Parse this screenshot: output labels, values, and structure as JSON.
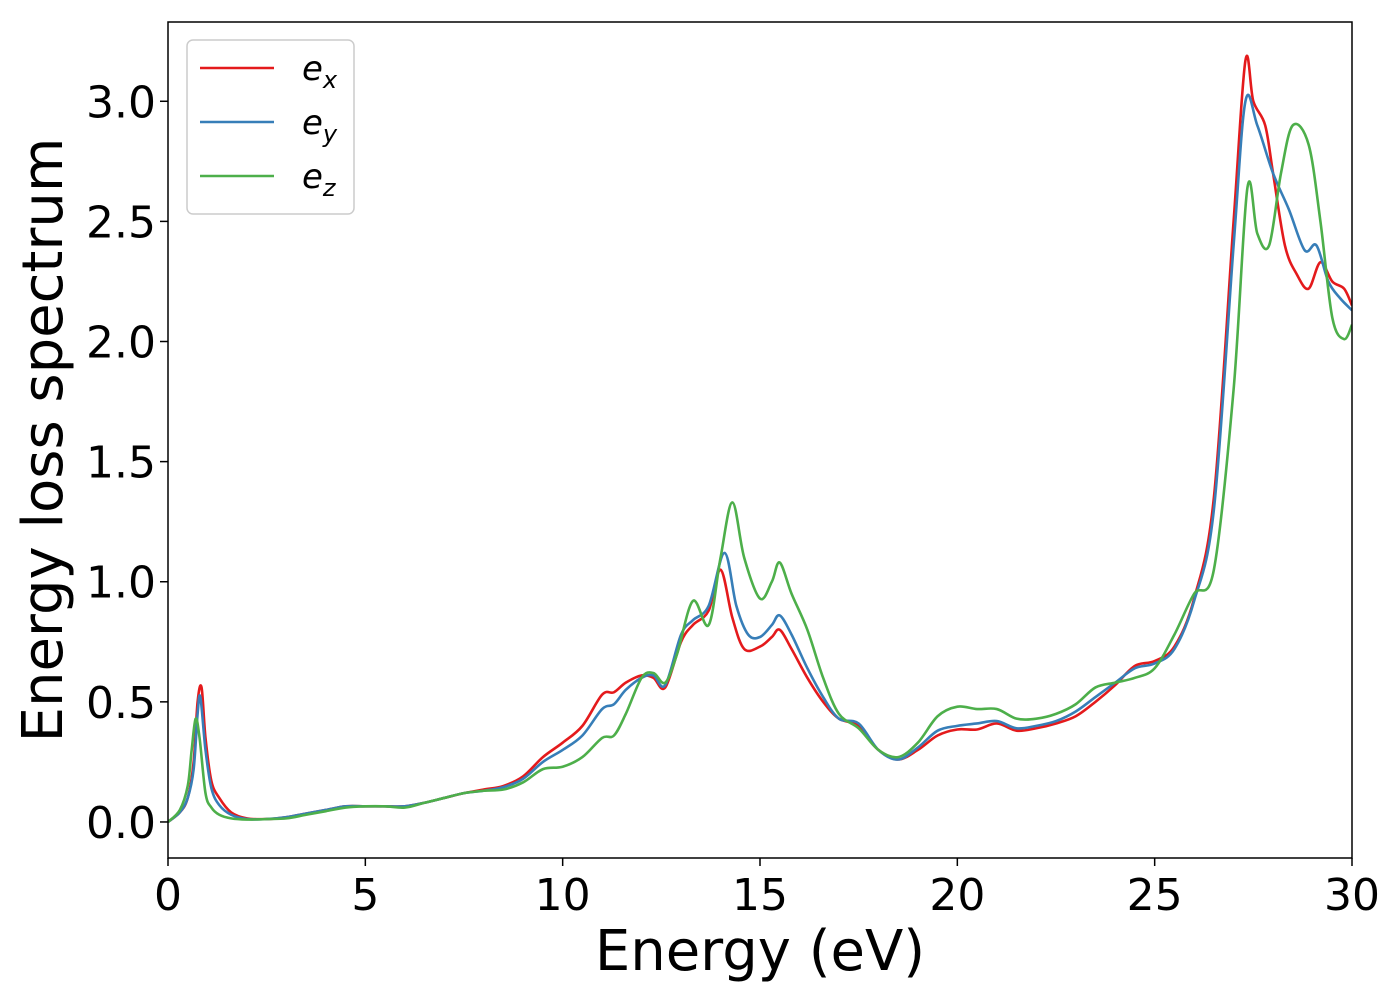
{
  "chart_data": {
    "type": "line",
    "xlabel": "Energy (eV)",
    "ylabel": "Energy loss spectrum",
    "xlim": [
      0,
      30
    ],
    "ylim": [
      -0.15,
      3.33
    ],
    "xticks": [
      0,
      5,
      10,
      15,
      20,
      25,
      30
    ],
    "xtick_labels": [
      "0",
      "5",
      "10",
      "15",
      "20",
      "25",
      "30"
    ],
    "yticks": [
      0.0,
      0.5,
      1.0,
      1.5,
      2.0,
      2.5,
      3.0
    ],
    "ytick_labels": [
      "0.0",
      "0.5",
      "1.0",
      "1.5",
      "2.0",
      "2.5",
      "3.0"
    ],
    "grid": false,
    "legend_position": "top-left",
    "series": [
      {
        "name": "e",
        "subscript": "x",
        "color": "#e41a1c",
        "points": [
          [
            0,
            0
          ],
          [
            0.3,
            0.04
          ],
          [
            0.5,
            0.1
          ],
          [
            0.65,
            0.25
          ],
          [
            0.75,
            0.5
          ],
          [
            0.85,
            0.56
          ],
          [
            0.95,
            0.35
          ],
          [
            1.1,
            0.17
          ],
          [
            1.3,
            0.1
          ],
          [
            1.6,
            0.04
          ],
          [
            2,
            0.015
          ],
          [
            2.5,
            0.012
          ],
          [
            3,
            0.02
          ],
          [
            3.5,
            0.035
          ],
          [
            4,
            0.05
          ],
          [
            4.5,
            0.065
          ],
          [
            5,
            0.065
          ],
          [
            5.5,
            0.065
          ],
          [
            6,
            0.065
          ],
          [
            6.5,
            0.08
          ],
          [
            7,
            0.1
          ],
          [
            7.5,
            0.12
          ],
          [
            8,
            0.135
          ],
          [
            8.5,
            0.15
          ],
          [
            9,
            0.19
          ],
          [
            9.5,
            0.27
          ],
          [
            10,
            0.33
          ],
          [
            10.5,
            0.4
          ],
          [
            11,
            0.53
          ],
          [
            11.3,
            0.54
          ],
          [
            11.6,
            0.58
          ],
          [
            12,
            0.61
          ],
          [
            12.3,
            0.6
          ],
          [
            12.6,
            0.56
          ],
          [
            13,
            0.75
          ],
          [
            13.3,
            0.82
          ],
          [
            13.7,
            0.88
          ],
          [
            14,
            1.05
          ],
          [
            14.3,
            0.85
          ],
          [
            14.6,
            0.72
          ],
          [
            15,
            0.73
          ],
          [
            15.3,
            0.77
          ],
          [
            15.5,
            0.8
          ],
          [
            15.8,
            0.72
          ],
          [
            16.2,
            0.6
          ],
          [
            16.6,
            0.5
          ],
          [
            17,
            0.43
          ],
          [
            17.5,
            0.4
          ],
          [
            18,
            0.3
          ],
          [
            18.5,
            0.26
          ],
          [
            19,
            0.3
          ],
          [
            19.5,
            0.36
          ],
          [
            20,
            0.385
          ],
          [
            20.5,
            0.385
          ],
          [
            21,
            0.41
          ],
          [
            21.5,
            0.38
          ],
          [
            22,
            0.39
          ],
          [
            22.5,
            0.41
          ],
          [
            23,
            0.44
          ],
          [
            23.5,
            0.5
          ],
          [
            24,
            0.57
          ],
          [
            24.5,
            0.65
          ],
          [
            25,
            0.67
          ],
          [
            25.5,
            0.73
          ],
          [
            26,
            0.93
          ],
          [
            26.5,
            1.35
          ],
          [
            27,
            2.5
          ],
          [
            27.3,
            3.17
          ],
          [
            27.5,
            3.0
          ],
          [
            27.8,
            2.9
          ],
          [
            28,
            2.7
          ],
          [
            28.3,
            2.4
          ],
          [
            28.6,
            2.28
          ],
          [
            28.9,
            2.22
          ],
          [
            29.2,
            2.33
          ],
          [
            29.5,
            2.25
          ],
          [
            29.8,
            2.22
          ],
          [
            30,
            2.15
          ]
        ]
      },
      {
        "name": "e",
        "subscript": "y",
        "color": "#377eb8",
        "points": [
          [
            0,
            0
          ],
          [
            0.3,
            0.04
          ],
          [
            0.5,
            0.1
          ],
          [
            0.65,
            0.22
          ],
          [
            0.75,
            0.45
          ],
          [
            0.82,
            0.52
          ],
          [
            0.95,
            0.3
          ],
          [
            1.1,
            0.14
          ],
          [
            1.3,
            0.07
          ],
          [
            1.6,
            0.03
          ],
          [
            2,
            0.012
          ],
          [
            2.5,
            0.012
          ],
          [
            3,
            0.02
          ],
          [
            3.5,
            0.035
          ],
          [
            4,
            0.05
          ],
          [
            4.5,
            0.065
          ],
          [
            5,
            0.065
          ],
          [
            5.5,
            0.065
          ],
          [
            6,
            0.065
          ],
          [
            6.5,
            0.08
          ],
          [
            7,
            0.1
          ],
          [
            7.5,
            0.12
          ],
          [
            8,
            0.13
          ],
          [
            8.5,
            0.145
          ],
          [
            9,
            0.18
          ],
          [
            9.5,
            0.25
          ],
          [
            10,
            0.3
          ],
          [
            10.5,
            0.36
          ],
          [
            11,
            0.47
          ],
          [
            11.3,
            0.49
          ],
          [
            11.6,
            0.55
          ],
          [
            12,
            0.6
          ],
          [
            12.3,
            0.61
          ],
          [
            12.6,
            0.57
          ],
          [
            13,
            0.78
          ],
          [
            13.3,
            0.84
          ],
          [
            13.7,
            0.9
          ],
          [
            14.1,
            1.12
          ],
          [
            14.4,
            0.9
          ],
          [
            14.7,
            0.78
          ],
          [
            15,
            0.77
          ],
          [
            15.3,
            0.82
          ],
          [
            15.5,
            0.86
          ],
          [
            15.8,
            0.78
          ],
          [
            16.2,
            0.64
          ],
          [
            16.6,
            0.52
          ],
          [
            17,
            0.43
          ],
          [
            17.5,
            0.41
          ],
          [
            18,
            0.3
          ],
          [
            18.5,
            0.26
          ],
          [
            19,
            0.31
          ],
          [
            19.5,
            0.38
          ],
          [
            20,
            0.4
          ],
          [
            20.5,
            0.41
          ],
          [
            21,
            0.42
          ],
          [
            21.5,
            0.39
          ],
          [
            22,
            0.4
          ],
          [
            22.5,
            0.42
          ],
          [
            23,
            0.46
          ],
          [
            23.5,
            0.52
          ],
          [
            24,
            0.58
          ],
          [
            24.5,
            0.64
          ],
          [
            25,
            0.66
          ],
          [
            25.5,
            0.72
          ],
          [
            26,
            0.92
          ],
          [
            26.5,
            1.3
          ],
          [
            27,
            2.4
          ],
          [
            27.3,
            3.0
          ],
          [
            27.6,
            2.9
          ],
          [
            28,
            2.7
          ],
          [
            28.4,
            2.55
          ],
          [
            28.8,
            2.38
          ],
          [
            29.1,
            2.4
          ],
          [
            29.4,
            2.25
          ],
          [
            29.7,
            2.18
          ],
          [
            30,
            2.13
          ]
        ]
      },
      {
        "name": "e",
        "subscript": "z",
        "color": "#4daf4a",
        "points": [
          [
            0,
            0
          ],
          [
            0.3,
            0.05
          ],
          [
            0.5,
            0.15
          ],
          [
            0.6,
            0.3
          ],
          [
            0.7,
            0.43
          ],
          [
            0.8,
            0.35
          ],
          [
            0.95,
            0.12
          ],
          [
            1.1,
            0.06
          ],
          [
            1.3,
            0.03
          ],
          [
            1.6,
            0.015
          ],
          [
            2,
            0.01
          ],
          [
            2.5,
            0.012
          ],
          [
            3,
            0.015
          ],
          [
            3.5,
            0.03
          ],
          [
            4,
            0.045
          ],
          [
            4.5,
            0.06
          ],
          [
            5,
            0.065
          ],
          [
            5.5,
            0.065
          ],
          [
            6,
            0.06
          ],
          [
            6.5,
            0.08
          ],
          [
            7,
            0.1
          ],
          [
            7.5,
            0.12
          ],
          [
            8,
            0.13
          ],
          [
            8.5,
            0.135
          ],
          [
            9,
            0.165
          ],
          [
            9.5,
            0.22
          ],
          [
            10,
            0.23
          ],
          [
            10.5,
            0.27
          ],
          [
            11,
            0.35
          ],
          [
            11.3,
            0.36
          ],
          [
            11.6,
            0.45
          ],
          [
            12,
            0.6
          ],
          [
            12.3,
            0.62
          ],
          [
            12.6,
            0.58
          ],
          [
            12.9,
            0.7
          ],
          [
            13.3,
            0.92
          ],
          [
            13.7,
            0.82
          ],
          [
            14,
            1.1
          ],
          [
            14.3,
            1.33
          ],
          [
            14.6,
            1.1
          ],
          [
            15,
            0.93
          ],
          [
            15.3,
            1.0
          ],
          [
            15.5,
            1.08
          ],
          [
            15.8,
            0.95
          ],
          [
            16.2,
            0.8
          ],
          [
            16.6,
            0.6
          ],
          [
            17,
            0.45
          ],
          [
            17.5,
            0.39
          ],
          [
            18,
            0.3
          ],
          [
            18.5,
            0.27
          ],
          [
            19,
            0.33
          ],
          [
            19.5,
            0.44
          ],
          [
            20,
            0.48
          ],
          [
            20.5,
            0.47
          ],
          [
            21,
            0.47
          ],
          [
            21.5,
            0.43
          ],
          [
            22,
            0.43
          ],
          [
            22.5,
            0.45
          ],
          [
            23,
            0.49
          ],
          [
            23.5,
            0.56
          ],
          [
            24,
            0.58
          ],
          [
            24.5,
            0.6
          ],
          [
            25,
            0.64
          ],
          [
            25.5,
            0.78
          ],
          [
            26,
            0.95
          ],
          [
            26.5,
            1.05
          ],
          [
            27,
            1.8
          ],
          [
            27.35,
            2.64
          ],
          [
            27.6,
            2.45
          ],
          [
            27.9,
            2.4
          ],
          [
            28.2,
            2.7
          ],
          [
            28.5,
            2.9
          ],
          [
            28.9,
            2.82
          ],
          [
            29.2,
            2.5
          ],
          [
            29.5,
            2.1
          ],
          [
            29.8,
            2.01
          ],
          [
            30,
            2.07
          ]
        ]
      }
    ]
  }
}
